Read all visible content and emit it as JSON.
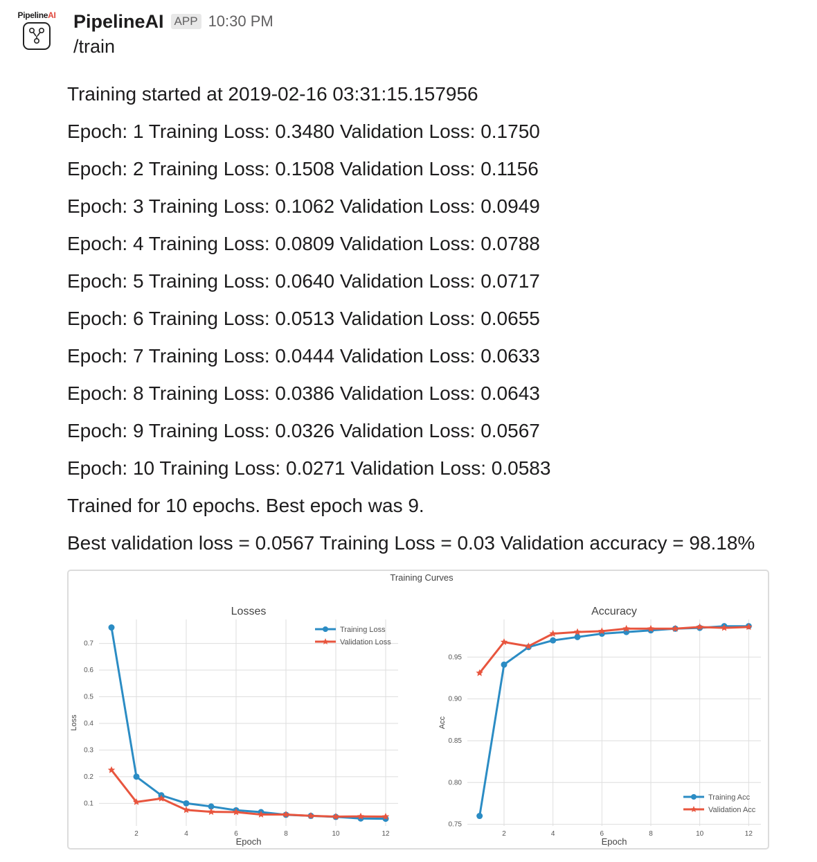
{
  "app": {
    "name": "PipelineAI",
    "badge": "APP",
    "time": "10:30 PM",
    "avatar_brand_main": "Pipeline",
    "avatar_brand_accent": "AI"
  },
  "message": {
    "command": "/train",
    "lines": [
      "Training started at 2019-02-16 03:31:15.157956",
      "Epoch: 1 Training Loss: 0.3480 Validation Loss: 0.1750",
      "Epoch: 2 Training Loss: 0.1508 Validation Loss: 0.1156",
      "Epoch: 3 Training Loss: 0.1062 Validation Loss: 0.0949",
      "Epoch: 4 Training Loss: 0.0809 Validation Loss: 0.0788",
      "Epoch: 5 Training Loss: 0.0640 Validation Loss: 0.0717",
      "Epoch: 6 Training Loss: 0.0513 Validation Loss: 0.0655",
      "Epoch: 7 Training Loss: 0.0444 Validation Loss: 0.0633",
      "Epoch: 8 Training Loss: 0.0386 Validation Loss: 0.0643",
      "Epoch: 9 Training Loss: 0.0326 Validation Loss: 0.0567",
      "Epoch: 10 Training Loss: 0.0271 Validation Loss: 0.0583",
      "Trained for 10 epochs. Best epoch was 9.",
      "Best validation loss = 0.0567 Training Loss = 0.03 Validation accuracy = 98.18%"
    ]
  },
  "colors": {
    "training": "#2b8cc4",
    "validation": "#e8553e",
    "grid": "#dedede",
    "badge_bg": "#e8e8e8"
  },
  "icons": {
    "avatar": "pipeline-logo-icon"
  },
  "figure": {
    "suptitle": "Training Curves"
  },
  "chart_data": [
    {
      "type": "line",
      "title": "Losses",
      "xlabel": "Epoch",
      "ylabel": "Loss",
      "xlim": [
        0.5,
        12.5
      ],
      "ylim": [
        0.015,
        0.79
      ],
      "xticks": [
        2,
        4,
        6,
        8,
        10,
        12
      ],
      "yticks": [
        0.1,
        0.2,
        0.3,
        0.4,
        0.5,
        0.6,
        0.7
      ],
      "ytick_labels": [
        "0.1",
        "0.2",
        "0.3",
        "0.4",
        "0.5",
        "0.6",
        "0.7"
      ],
      "grid": true,
      "legend": "top-right",
      "x": [
        1,
        2,
        3,
        4,
        5,
        6,
        7,
        8,
        9,
        10,
        11,
        12
      ],
      "series": [
        {
          "name": "Training Loss",
          "marker": "circle",
          "values": [
            0.76,
            0.2,
            0.13,
            0.1,
            0.088,
            0.074,
            0.067,
            0.057,
            0.053,
            0.049,
            0.043,
            0.042
          ]
        },
        {
          "name": "Validation Loss",
          "marker": "star",
          "values": [
            0.225,
            0.105,
            0.118,
            0.075,
            0.068,
            0.067,
            0.058,
            0.058,
            0.053,
            0.05,
            0.051,
            0.05
          ]
        }
      ]
    },
    {
      "type": "line",
      "title": "Accuracy",
      "xlabel": "Epoch",
      "ylabel": "Acc",
      "xlim": [
        0.5,
        12.5
      ],
      "ylim": [
        0.748,
        0.995
      ],
      "xticks": [
        2,
        4,
        6,
        8,
        10,
        12
      ],
      "yticks": [
        0.75,
        0.8,
        0.85,
        0.9,
        0.95
      ],
      "ytick_labels": [
        "0.75",
        "0.80",
        "0.85",
        "0.90",
        "0.95"
      ],
      "grid": true,
      "legend": "bottom-right",
      "x": [
        1,
        2,
        3,
        4,
        5,
        6,
        7,
        8,
        9,
        10,
        11,
        12
      ],
      "series": [
        {
          "name": "Training Acc",
          "marker": "circle",
          "values": [
            0.76,
            0.941,
            0.962,
            0.97,
            0.974,
            0.978,
            0.98,
            0.982,
            0.984,
            0.985,
            0.987,
            0.987
          ]
        },
        {
          "name": "Validation Acc",
          "marker": "star",
          "values": [
            0.931,
            0.968,
            0.963,
            0.978,
            0.98,
            0.981,
            0.984,
            0.984,
            0.984,
            0.986,
            0.985,
            0.986
          ]
        }
      ]
    }
  ]
}
